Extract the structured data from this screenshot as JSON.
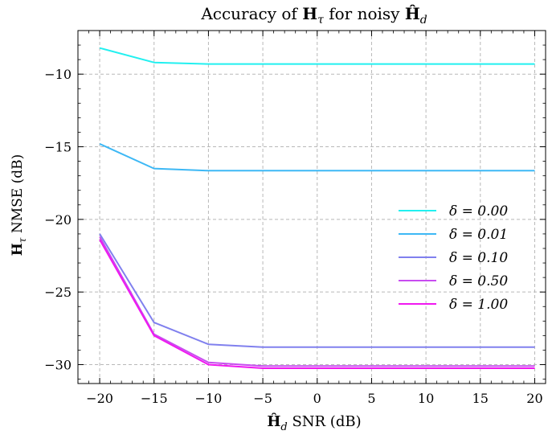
{
  "chart_data": {
    "type": "line",
    "title": "Accuracy of H_τ for noisy Ĥ_d",
    "xlabel": "Ĥ_d SNR (dB)",
    "ylabel": "H_τ NMSE (dB)",
    "xlim": [
      -22,
      21
    ],
    "ylim": [
      -31.3,
      -7.0
    ],
    "x_ticks": [
      -20,
      -15,
      -10,
      -5,
      0,
      5,
      10,
      15,
      20
    ],
    "y_ticks": [
      -30,
      -25,
      -20,
      -15,
      -10
    ],
    "x_tick_labels": [
      "−20",
      "−15",
      "−10",
      "−5",
      "0",
      "5",
      "10",
      "15",
      "20"
    ],
    "y_tick_labels": [
      "−30",
      "−25",
      "−20",
      "−15",
      "−10"
    ],
    "grid": true,
    "legend_position": "center-right",
    "x": [
      -20,
      -15,
      -10,
      -5,
      0,
      5,
      10,
      15,
      20
    ],
    "series": [
      {
        "name": "δ = 0.00",
        "color": "#22f0f0",
        "values": [
          -8.2,
          -9.2,
          -9.3,
          -9.3,
          -9.3,
          -9.3,
          -9.3,
          -9.3,
          -9.3
        ]
      },
      {
        "name": "δ = 0.01",
        "color": "#3db8f5",
        "values": [
          -14.8,
          -16.5,
          -16.65,
          -16.65,
          -16.65,
          -16.65,
          -16.65,
          -16.65,
          -16.65
        ]
      },
      {
        "name": "δ = 0.10",
        "color": "#8080ee",
        "values": [
          -21.0,
          -27.1,
          -28.6,
          -28.8,
          -28.8,
          -28.8,
          -28.8,
          -28.8,
          -28.8
        ]
      },
      {
        "name": "δ = 0.50",
        "color": "#c84cf0",
        "values": [
          -21.2,
          -27.9,
          -29.85,
          -30.1,
          -30.1,
          -30.1,
          -30.1,
          -30.1,
          -30.1
        ]
      },
      {
        "name": "δ = 1.00",
        "color": "#f018f0",
        "values": [
          -21.4,
          -28.0,
          -30.0,
          -30.25,
          -30.25,
          -30.25,
          -30.25,
          -30.25,
          -30.25
        ]
      }
    ]
  }
}
